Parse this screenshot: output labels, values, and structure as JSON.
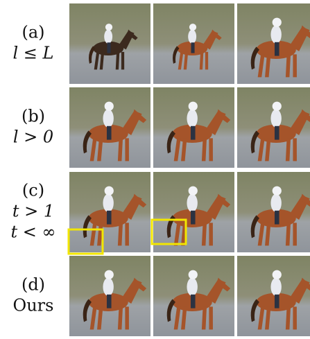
{
  "rows": [
    {
      "label": "(a)",
      "condition": [
        "l ≤ L"
      ]
    },
    {
      "label": "(b)",
      "condition": [
        "l > 0"
      ]
    },
    {
      "label": "(c)",
      "condition": [
        "t > 1",
        "t < ∞"
      ]
    },
    {
      "label": "(d)",
      "condition": [
        "Ours"
      ]
    }
  ]
}
